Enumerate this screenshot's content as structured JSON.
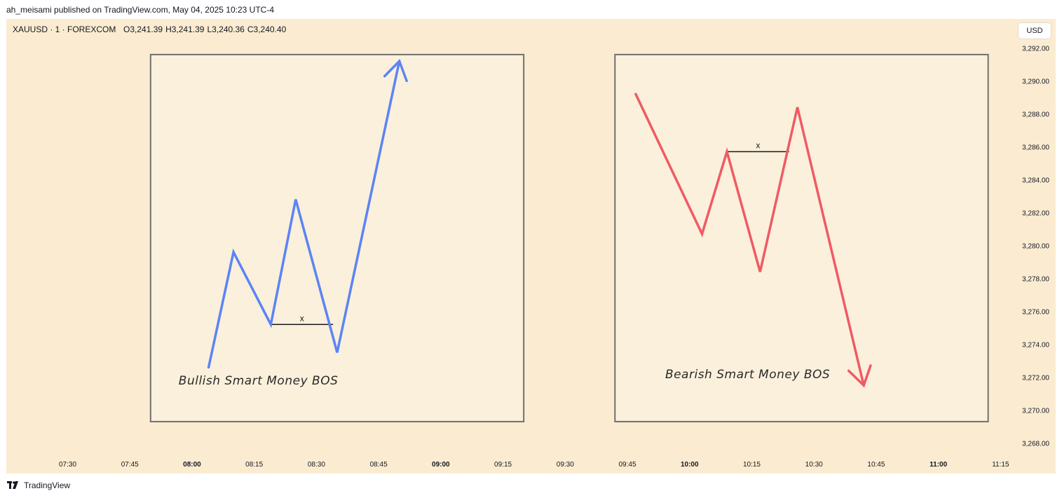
{
  "header": {
    "published": "ah_meisami published on TradingView.com, May 04, 2025 10:23 UTC-4"
  },
  "symbol": {
    "name": "XAUUSD · 1 · FOREXCOM",
    "open": "O3,241.39",
    "high": "H3,241.39",
    "low": "L3,240.36",
    "close": "C3,240.40"
  },
  "currency_button": "USD",
  "footer": {
    "brand": "TradingView"
  },
  "colors": {
    "background": "#fbecd1",
    "panel": "#faf0db",
    "bullish": "#5b84f5",
    "bearish": "#f05a64",
    "panel_border": "#707070"
  },
  "chart_data": {
    "type": "line",
    "y_axis": {
      "min": 3267,
      "max": 3293.5,
      "ticks": [
        3292,
        3290,
        3288,
        3286,
        3284,
        3282,
        3280,
        3278,
        3276,
        3274,
        3272,
        3270,
        3268
      ],
      "tick_labels": [
        "3,292.00",
        "3,290.00",
        "3,288.00",
        "3,286.00",
        "3,284.00",
        "3,282.00",
        "3,280.00",
        "3,278.00",
        "3,276.00",
        "3,274.00",
        "3,272.00",
        "3,270.00",
        "3,268.00"
      ]
    },
    "x_axis": {
      "ticks": [
        "07:30",
        "07:45",
        "08:00",
        "08:15",
        "08:30",
        "08:45",
        "09:00",
        "09:15",
        "09:30",
        "09:45",
        "10:00",
        "10:15",
        "10:30",
        "10:45",
        "11:00",
        "11:15"
      ],
      "bold_ticks": [
        "08:00",
        "09:00",
        "10:00",
        "11:00"
      ]
    },
    "panels": [
      {
        "label": "Bullish Smart Money BOS",
        "x_start": "07:50",
        "x_end": "09:20",
        "y_top": 3291.6,
        "y_bottom": 3269.3
      },
      {
        "label": "Bearish Smart Money BOS",
        "x_start": "09:42",
        "x_end": "11:12",
        "y_top": 3291.6,
        "y_bottom": 3269.3
      }
    ],
    "series": [
      {
        "points": [
          {
            "x": "08:04",
            "y": 3272.6
          },
          {
            "x": "08:10",
            "y": 3279.6
          },
          {
            "x": "08:19",
            "y": 3275.2
          },
          {
            "x": "08:25",
            "y": 3282.8
          },
          {
            "x": "08:35",
            "y": 3273.5
          },
          {
            "x": "08:50",
            "y": 3291.2
          }
        ],
        "arrow_end": true
      },
      {
        "points": [
          {
            "x": "09:47",
            "y": 3289.2
          },
          {
            "x": "10:03",
            "y": 3280.7
          },
          {
            "x": "10:09",
            "y": 3285.7
          },
          {
            "x": "10:17",
            "y": 3278.4
          },
          {
            "x": "10:26",
            "y": 3288.4
          },
          {
            "x": "10:42",
            "y": 3271.5
          }
        ],
        "arrow_end": true
      }
    ],
    "break_lines": [
      {
        "x1": "08:19",
        "x2": "08:34",
        "y": 3275.2,
        "label": "x"
      },
      {
        "x1": "10:09",
        "x2": "10:24",
        "y": 3285.7,
        "label": "x"
      }
    ]
  }
}
